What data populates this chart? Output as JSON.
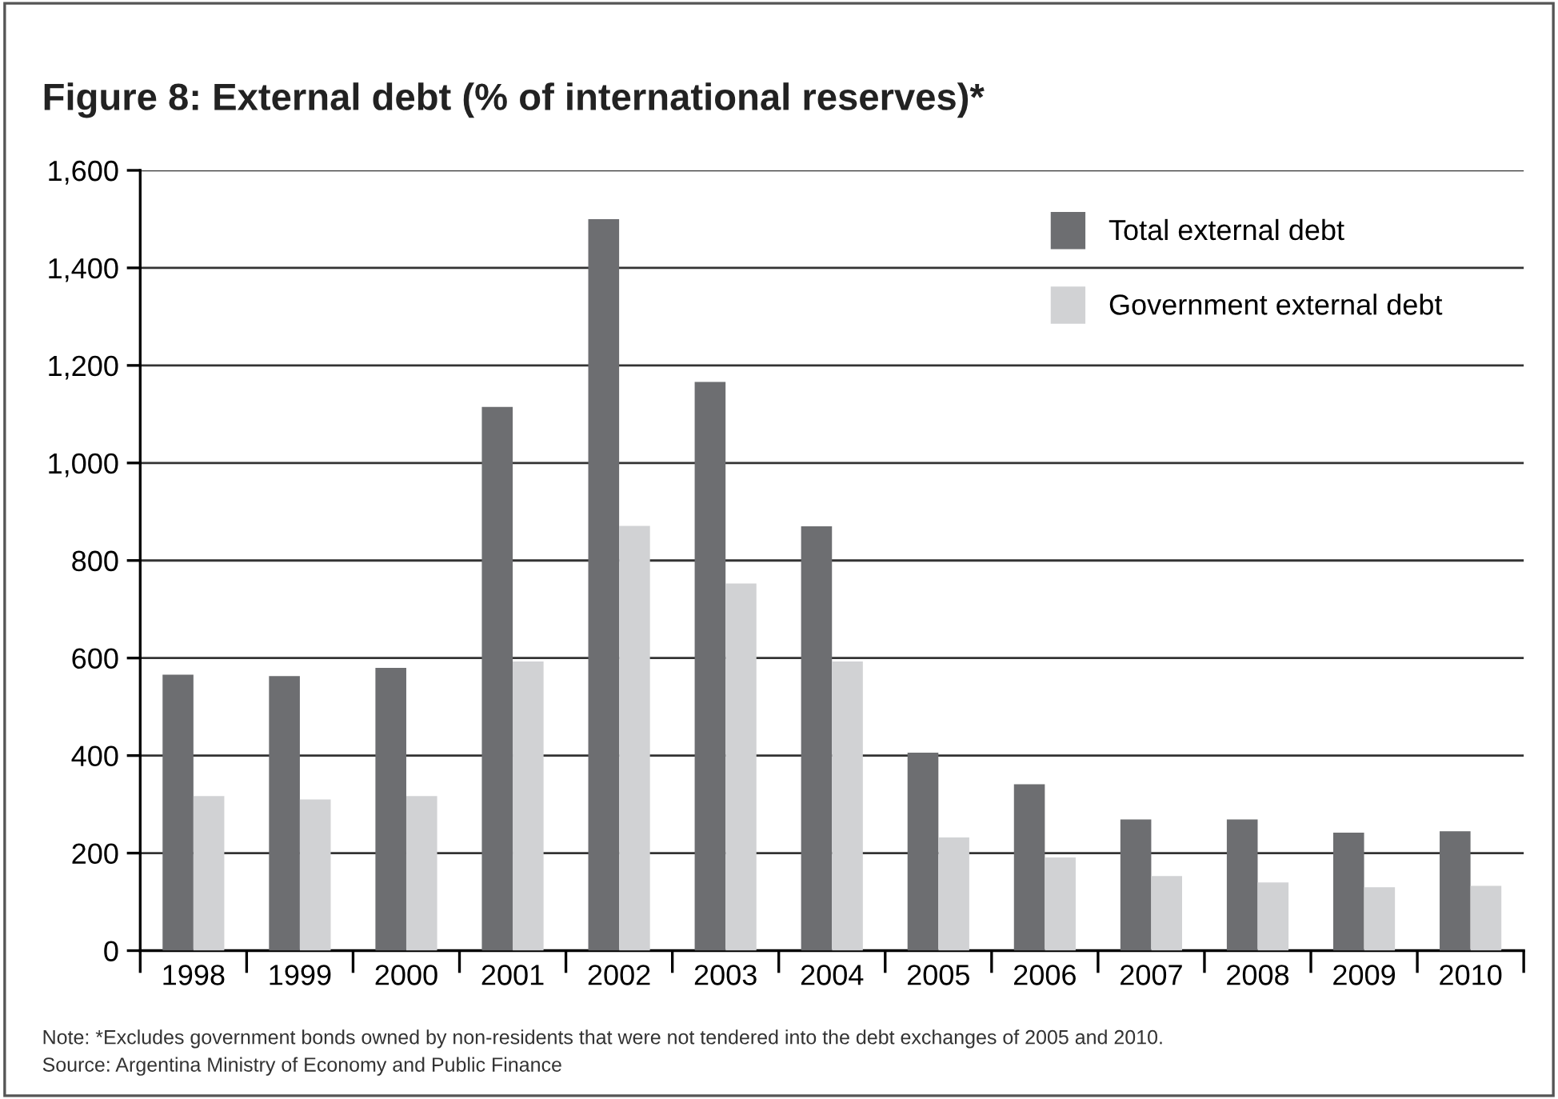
{
  "chart_data": {
    "type": "bar",
    "title": "Figure 8: External debt (% of international reserves)*",
    "categories": [
      "1998",
      "1999",
      "2000",
      "2001",
      "2002",
      "2003",
      "2004",
      "2005",
      "2006",
      "2007",
      "2008",
      "2009",
      "2010"
    ],
    "series": [
      {
        "name": "Total external debt",
        "color": "#6d6e71",
        "values": [
          566,
          563,
          580,
          1115,
          1500,
          1166,
          870,
          406,
          341,
          269,
          269,
          242,
          245
        ]
      },
      {
        "name": "Government external debt",
        "color": "#d1d2d4",
        "values": [
          317,
          310,
          317,
          593,
          871,
          753,
          593,
          232,
          191,
          153,
          140,
          130,
          133
        ]
      }
    ],
    "ylim": [
      0,
      1600
    ],
    "yticks": [
      {
        "value": 0,
        "label": "0"
      },
      {
        "value": 200,
        "label": "200"
      },
      {
        "value": 400,
        "label": "400"
      },
      {
        "value": 600,
        "label": "600"
      },
      {
        "value": 800,
        "label": "800"
      },
      {
        "value": 1000,
        "label": "1,000"
      },
      {
        "value": 1200,
        "label": "1,200"
      },
      {
        "value": 1400,
        "label": "1,400"
      },
      {
        "value": 1600,
        "label": "1,600"
      }
    ],
    "grid": "y",
    "legend": "top right",
    "annotations": [
      "Note: *Excludes government bonds owned by non-residents that were not tendered into the debt exchanges of 2005 and 2010.",
      "Source: Argentina Ministry of Economy and Public Finance"
    ]
  }
}
